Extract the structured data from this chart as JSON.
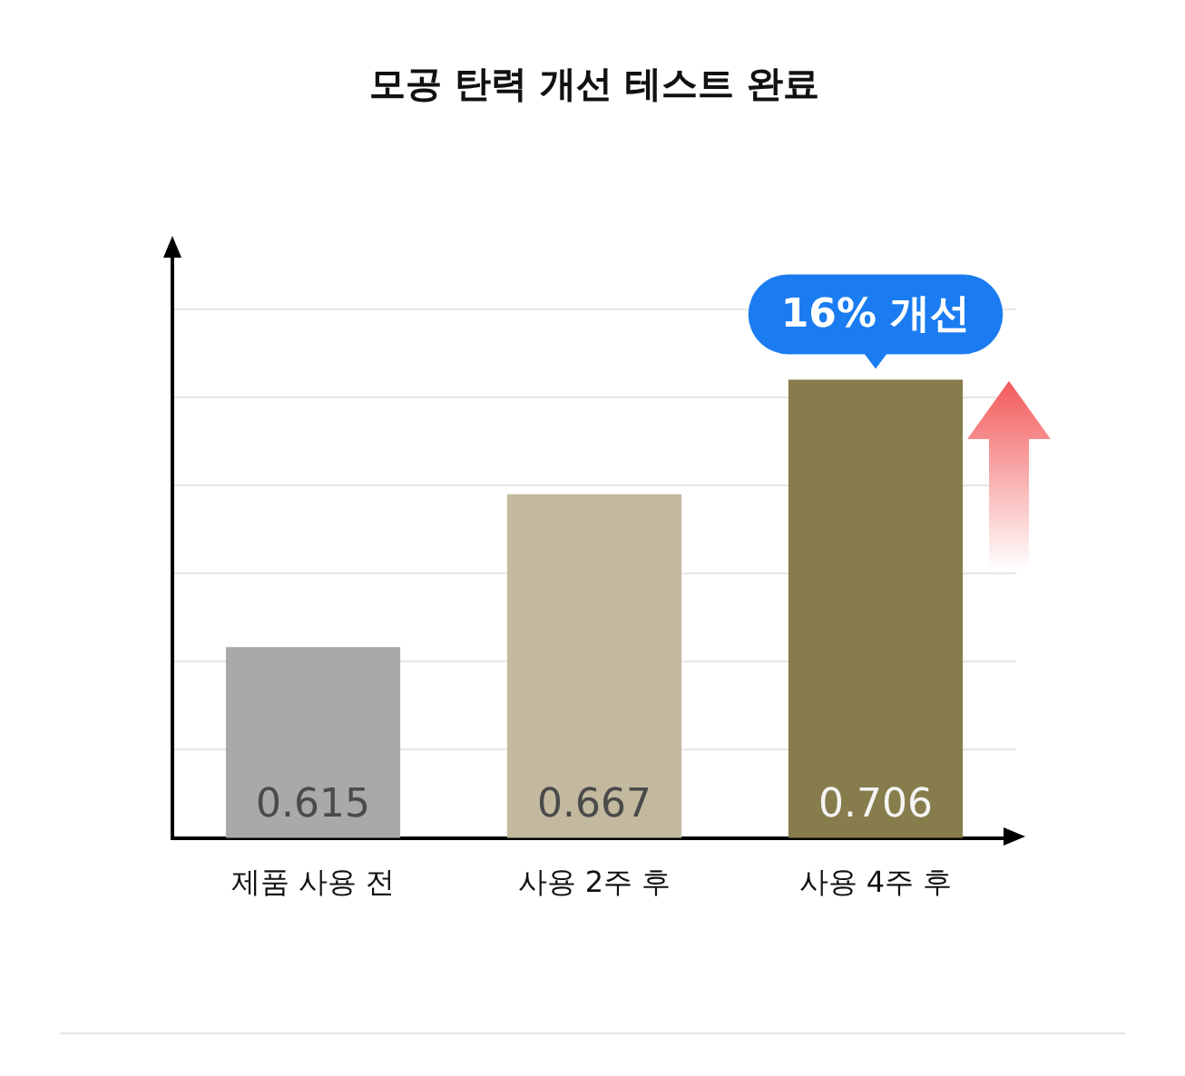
{
  "chart_data": {
    "type": "bar",
    "title": "모공 탄력 개선 테스트 완료",
    "categories": [
      "제품 사용 전",
      "사용 2주 후",
      "사용 4주 후"
    ],
    "values": [
      0.615,
      0.667,
      0.706
    ],
    "colors": [
      "#a9a9a9",
      "#c2b99f",
      "#877c4c"
    ],
    "data_labels": true,
    "ylim": [
      0.55,
      0.75
    ],
    "yticks": [
      {
        "value": 0.58,
        "label": null
      },
      {
        "value": 0.61,
        "label": null
      },
      {
        "value": 0.64,
        "label": null
      },
      {
        "value": 0.67,
        "label": null
      },
      {
        "value": 0.7,
        "label": null
      },
      {
        "value": 0.73,
        "label": null
      }
    ],
    "grid": "y",
    "tick_labels": "x",
    "annotations": [
      {
        "text": "16% 개선",
        "x": "사용 4주 후",
        "y": 0.706
      }
    ]
  }
}
